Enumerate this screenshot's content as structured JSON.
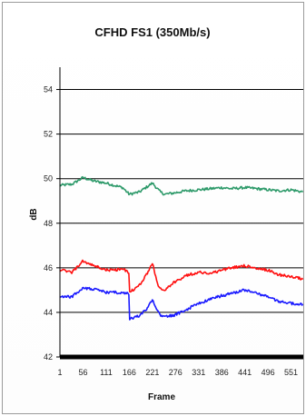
{
  "chart_data": {
    "type": "line",
    "title": "CFHD FS1 (350Mb/s)",
    "xlabel": "Frame",
    "ylabel": "dB",
    "x_ticks": [
      "1",
      "56",
      "111",
      "166",
      "221",
      "276",
      "331",
      "386",
      "441",
      "496",
      "551"
    ],
    "xlim": [
      1,
      580
    ],
    "y_ticks": [
      "42",
      "44",
      "46",
      "48",
      "50",
      "52",
      "54"
    ],
    "ylim": [
      42,
      55
    ],
    "grid": "horizontal",
    "legend": "none",
    "colors": {
      "green": "#2e9a6a",
      "red": "#ff1010",
      "blue": "#1a1aff",
      "axis": "#000000",
      "grid": "#000000"
    },
    "series": [
      {
        "color": "green",
        "x": [
          1,
          30,
          56,
          80,
          111,
          130,
          150,
          166,
          190,
          221,
          240,
          250,
          270,
          300,
          331,
          360,
          386,
          410,
          441,
          470,
          496,
          520,
          551,
          580
        ],
        "y": [
          49.7,
          49.75,
          50.05,
          49.9,
          49.8,
          49.7,
          49.6,
          49.3,
          49.4,
          49.8,
          49.4,
          49.3,
          49.35,
          49.45,
          49.5,
          49.55,
          49.6,
          49.55,
          49.6,
          49.55,
          49.5,
          49.45,
          49.5,
          49.4
        ]
      },
      {
        "color": "red",
        "x": [
          1,
          30,
          56,
          80,
          111,
          130,
          150,
          165,
          167,
          190,
          210,
          221,
          235,
          245,
          270,
          300,
          331,
          360,
          386,
          410,
          441,
          470,
          496,
          520,
          551,
          580
        ],
        "y": [
          45.9,
          45.8,
          46.3,
          46.1,
          45.9,
          45.9,
          45.95,
          45.8,
          44.9,
          45.2,
          45.8,
          46.2,
          45.2,
          44.95,
          45.3,
          45.65,
          45.8,
          45.75,
          45.9,
          46.0,
          46.1,
          45.95,
          45.9,
          45.7,
          45.6,
          45.5
        ]
      },
      {
        "color": "blue",
        "x": [
          1,
          30,
          56,
          80,
          111,
          130,
          150,
          165,
          167,
          190,
          210,
          221,
          235,
          245,
          270,
          300,
          331,
          360,
          386,
          410,
          441,
          470,
          496,
          520,
          551,
          580
        ],
        "y": [
          44.7,
          44.7,
          45.1,
          45.05,
          44.9,
          44.9,
          44.85,
          44.85,
          43.7,
          43.85,
          44.2,
          44.6,
          44.0,
          43.8,
          43.85,
          44.1,
          44.4,
          44.6,
          44.75,
          44.85,
          45.0,
          44.85,
          44.7,
          44.5,
          44.4,
          44.35
        ]
      }
    ]
  }
}
